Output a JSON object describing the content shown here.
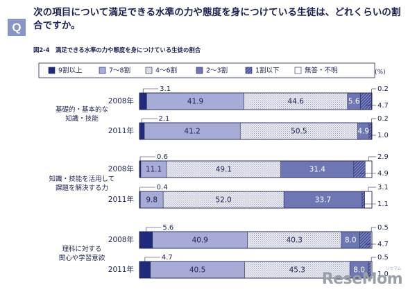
{
  "question": {
    "badge": "Q",
    "text": "次の項目について満足できる水準の力や態度を身につけている生徒は、どれくらいの割合ですか。"
  },
  "figure_title": "図2-4　満足できる水準の力や態度を身につけている生徒の割合",
  "watermark": {
    "text": "ReseMom",
    "small": "リセマム"
  },
  "colors": {
    "cat1": "#1f2a7a",
    "cat2": "#a6acd6",
    "cat3": "#e6e7ef",
    "cat4": "#6e76b4",
    "cat5": "#5b64a8",
    "cat6": "#ffffff",
    "accent": "#8a95c6",
    "text": "#1c2150"
  },
  "chart_data": {
    "type": "bar",
    "orientation": "horizontal",
    "stacked": true,
    "unit": "(%)",
    "legend": [
      "9割以上",
      "7～8割",
      "4～6割",
      "2～3割",
      "1割以下",
      "無答・不明"
    ],
    "groups": [
      {
        "label_lines": [
          "基礎的・基本的な",
          "知識・技能"
        ],
        "rows": [
          {
            "year": "2008年",
            "values": [
              3.1,
              41.9,
              44.6,
              5.6,
              4.7,
              0.2
            ]
          },
          {
            "year": "2011年",
            "values": [
              2.1,
              41.2,
              50.5,
              4.9,
              1.0,
              0.2
            ]
          }
        ]
      },
      {
        "label_lines": [
          "知識・技能を活用して",
          "課題を解決する力"
        ],
        "rows": [
          {
            "year": "2008年",
            "values": [
              0.6,
              11.1,
              49.1,
              31.4,
              4.9,
              2.9
            ]
          },
          {
            "year": "2011年",
            "values": [
              0.4,
              9.8,
              52.0,
              33.7,
              1.1,
              3.1
            ]
          }
        ]
      },
      {
        "label_lines": [
          "理科に対する",
          "関心や学習意欲"
        ],
        "rows": [
          {
            "year": "2008年",
            "values": [
              5.6,
              40.9,
              40.3,
              8.0,
              4.7,
              0.5
            ]
          },
          {
            "year": "2011年",
            "values": [
              4.7,
              40.5,
              45.3,
              8.0,
              1.0,
              0.5
            ]
          }
        ]
      }
    ],
    "xlim": [
      0,
      100
    ]
  }
}
